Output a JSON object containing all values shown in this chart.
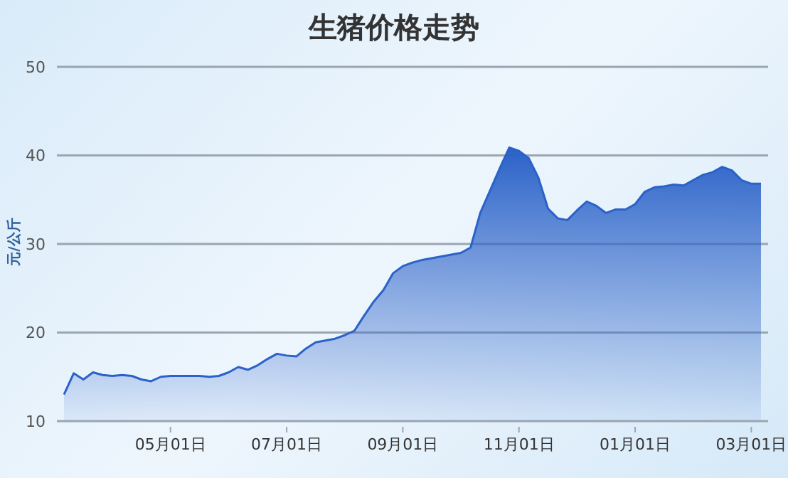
{
  "chart_data": {
    "type": "area",
    "title": "生猪价格走势",
    "ylabel": "元/公斤",
    "categories": [
      null,
      null,
      null,
      null,
      null,
      null,
      null,
      null,
      null,
      null,
      null,
      "05月01日",
      null,
      null,
      null,
      null,
      null,
      null,
      null,
      null,
      null,
      null,
      null,
      "07月01日",
      null,
      null,
      null,
      null,
      null,
      null,
      null,
      null,
      null,
      null,
      null,
      "09月01日",
      null,
      null,
      null,
      null,
      null,
      null,
      null,
      null,
      null,
      null,
      null,
      "11月01日",
      null,
      null,
      null,
      null,
      null,
      null,
      null,
      null,
      null,
      null,
      null,
      "01月01日",
      null,
      null,
      null,
      null,
      null,
      null,
      null,
      null,
      null,
      null,
      null,
      "03月01日",
      null
    ],
    "series": [
      {
        "color": "#2b62c8",
        "values": [
          13.0,
          15.4,
          14.7,
          15.5,
          15.2,
          15.1,
          15.2,
          15.1,
          14.7,
          14.5,
          15.0,
          15.1,
          15.1,
          15.1,
          15.1,
          15.0,
          15.1,
          15.5,
          16.1,
          15.8,
          16.3,
          17.0,
          17.6,
          17.4,
          17.3,
          18.2,
          18.9,
          19.1,
          19.3,
          19.7,
          20.2,
          21.9,
          23.5,
          24.8,
          26.7,
          27.5,
          27.9,
          28.2,
          28.4,
          28.6,
          28.8,
          29.0,
          29.6,
          33.5,
          36.0,
          38.5,
          40.9,
          40.5,
          39.7,
          37.5,
          34.0,
          32.9,
          32.7,
          33.8,
          34.8,
          34.3,
          33.5,
          33.9,
          33.9,
          34.5,
          35.9,
          36.4,
          36.5,
          36.7,
          36.6,
          37.2,
          37.8,
          38.1,
          38.7,
          38.3,
          37.2,
          36.8,
          36.8
        ]
      }
    ],
    "ylim": [
      10,
      50
    ],
    "yticks": [
      10,
      20,
      30,
      40,
      50
    ],
    "grid": "y",
    "marker": "none",
    "line_style": "solid"
  }
}
